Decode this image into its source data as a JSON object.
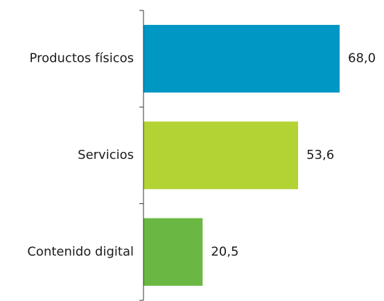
{
  "chart_data": {
    "type": "barh",
    "categories": [
      "Productos físicos",
      "Servicios",
      "Contenido digital"
    ],
    "values": [
      68.0,
      53.6,
      20.5
    ],
    "value_labels": [
      "68,0",
      "53,6",
      "20,5"
    ],
    "colors": [
      "#0097c4",
      "#b3d335",
      "#6ab843"
    ]
  }
}
